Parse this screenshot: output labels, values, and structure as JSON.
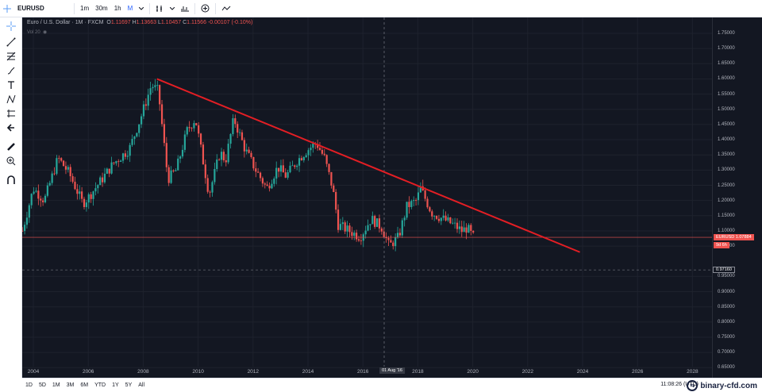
{
  "toolbar": {
    "symbol": "EURUSD",
    "intervals": [
      "1m",
      "30m",
      "1h",
      "M"
    ],
    "active_interval": "M"
  },
  "legend": {
    "title": "Euro / U.S. Dollar",
    "interval": "1M",
    "source": "FXCM",
    "open_label": "O",
    "open": "1.11697",
    "high_label": "H",
    "high": "1.13663",
    "low_label": "L",
    "low": "1.10457",
    "close_label": "C",
    "close": "1.11566",
    "change": "-0.00107 (-0.10%)",
    "volume_label": "Vol 20"
  },
  "price_axis": {
    "labels": [
      "1.75000",
      "1.70000",
      "1.65000",
      "1.60000",
      "1.55000",
      "1.50000",
      "1.45000",
      "1.40000",
      "1.35000",
      "1.30000",
      "1.25000",
      "1.20000",
      "1.15000",
      "1.10000",
      "1.05000",
      "0.95000",
      "0.90000",
      "0.85000",
      "0.80000",
      "0.75000",
      "0.70000",
      "0.65000",
      "0.60000"
    ],
    "current_symbol": "EURUSD",
    "current_price": "1.07884",
    "countdown": "9d 6h",
    "crosshair_price": "0.97160"
  },
  "time_axis": {
    "labels": [
      "2004",
      "2006",
      "2008",
      "2010",
      "2012",
      "2014",
      "2016",
      "2018",
      "2020",
      "2022",
      "2024",
      "2026",
      "2028"
    ],
    "crosshair_time": "01 Aug '16"
  },
  "bottom": {
    "ranges": [
      "1D",
      "5D",
      "1M",
      "3M",
      "6M",
      "YTD",
      "1Y",
      "5Y",
      "All"
    ],
    "clock": "11:08:26 (UTC)",
    "watermark": "binary-cfd.com"
  },
  "chart_data": {
    "type": "candlestick",
    "title": "Euro / U.S. Dollar",
    "interval": "1M",
    "x_range": [
      2003.5,
      2029
    ],
    "y_range": [
      0.6,
      1.75
    ],
    "grid": true,
    "close_path": [
      [
        2003.6,
        1.1
      ],
      [
        2004.0,
        1.24
      ],
      [
        2004.4,
        1.2
      ],
      [
        2004.9,
        1.34
      ],
      [
        2005.3,
        1.29
      ],
      [
        2005.8,
        1.19
      ],
      [
        2006.0,
        1.21
      ],
      [
        2006.5,
        1.27
      ],
      [
        2006.9,
        1.32
      ],
      [
        2007.5,
        1.37
      ],
      [
        2007.9,
        1.47
      ],
      [
        2008.3,
        1.58
      ],
      [
        2008.55,
        1.56
      ],
      [
        2008.9,
        1.27
      ],
      [
        2009.2,
        1.3
      ],
      [
        2009.6,
        1.43
      ],
      [
        2009.9,
        1.47
      ],
      [
        2010.4,
        1.22
      ],
      [
        2010.8,
        1.36
      ],
      [
        2011.0,
        1.33
      ],
      [
        2011.3,
        1.47
      ],
      [
        2011.7,
        1.37
      ],
      [
        2012.1,
        1.3
      ],
      [
        2012.5,
        1.24
      ],
      [
        2012.9,
        1.31
      ],
      [
        2013.2,
        1.28
      ],
      [
        2013.6,
        1.33
      ],
      [
        2013.9,
        1.36
      ],
      [
        2014.3,
        1.39
      ],
      [
        2014.6,
        1.34
      ],
      [
        2014.9,
        1.24
      ],
      [
        2015.1,
        1.12
      ],
      [
        2015.5,
        1.1
      ],
      [
        2015.9,
        1.08
      ],
      [
        2016.3,
        1.14
      ],
      [
        2016.7,
        1.11
      ],
      [
        2016.95,
        1.05
      ],
      [
        2017.3,
        1.08
      ],
      [
        2017.6,
        1.18
      ],
      [
        2017.95,
        1.2
      ],
      [
        2018.1,
        1.24
      ],
      [
        2018.5,
        1.16
      ],
      [
        2018.9,
        1.14
      ],
      [
        2019.3,
        1.12
      ],
      [
        2019.6,
        1.1
      ],
      [
        2019.8,
        1.11
      ],
      [
        2020.0,
        1.08
      ]
    ],
    "trendline": {
      "start": [
        2008.5,
        1.6
      ],
      "end": [
        2023.9,
        1.03
      ]
    }
  }
}
